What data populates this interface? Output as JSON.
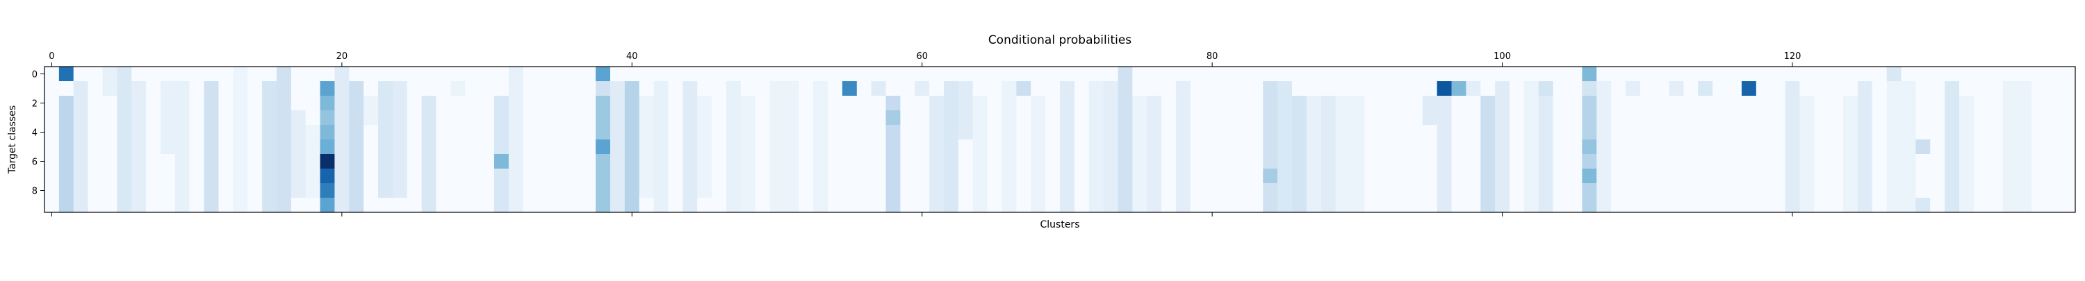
{
  "chart_data": {
    "type": "heatmap",
    "title": "Conditional probabilities",
    "xlabel": "Clusters",
    "ylabel": "Target classes",
    "colormap": "Blues",
    "x_range": [
      0,
      139
    ],
    "y_range": [
      0,
      9
    ],
    "xticks": [
      0,
      20,
      40,
      60,
      80,
      100,
      120
    ],
    "yticks": [
      0,
      2,
      4,
      6,
      8
    ],
    "xtick_position": "top and bottom (labels on top)",
    "value_scale": "relative intensity 0-1 (no colorbar shown)",
    "colors": {
      "low": "#f7fbff",
      "high": "#08306b",
      "axis": "#000000"
    },
    "sparse_cells": [
      {
        "col": 1,
        "rows": [
          0
        ],
        "v": 0.75
      },
      {
        "col": 1,
        "rows": [
          2,
          3,
          4,
          5,
          6,
          7,
          8,
          9
        ],
        "v": 0.28
      },
      {
        "col": 2,
        "rows": [
          1,
          2,
          3,
          4,
          5,
          6,
          7,
          8,
          9
        ],
        "v": 0.12
      },
      {
        "col": 4,
        "rows": [
          0,
          1
        ],
        "v": 0.08
      },
      {
        "col": 5,
        "rows": [
          0,
          1,
          2,
          3,
          4,
          5,
          6,
          7,
          8,
          9
        ],
        "v": 0.15
      },
      {
        "col": 6,
        "rows": [
          1,
          2,
          3,
          4,
          5,
          6,
          7,
          8,
          9
        ],
        "v": 0.1
      },
      {
        "col": 8,
        "rows": [
          1,
          2,
          3,
          4,
          5
        ],
        "v": 0.08
      },
      {
        "col": 9,
        "rows": [
          1,
          2,
          3,
          4,
          5,
          6,
          7,
          8,
          9
        ],
        "v": 0.08
      },
      {
        "col": 11,
        "rows": [
          1,
          2,
          3,
          4,
          5,
          6,
          7,
          8,
          9
        ],
        "v": 0.2
      },
      {
        "col": 13,
        "rows": [
          0,
          1,
          2,
          3,
          4,
          5,
          6,
          7,
          8,
          9
        ],
        "v": 0.05
      },
      {
        "col": 15,
        "rows": [
          1,
          2,
          3,
          4,
          5,
          6,
          7,
          8,
          9
        ],
        "v": 0.18
      },
      {
        "col": 16,
        "rows": [
          0
        ],
        "v": 0.2
      },
      {
        "col": 16,
        "rows": [
          1,
          2,
          3,
          4,
          5,
          6,
          7,
          8,
          9
        ],
        "v": 0.2
      },
      {
        "col": 17,
        "rows": [
          3,
          4,
          5,
          6,
          7,
          8
        ],
        "v": 0.1
      },
      {
        "col": 18,
        "rows": [
          4,
          5,
          6,
          7,
          8
        ],
        "v": 0.05
      },
      {
        "col": 19,
        "rows": [
          1
        ],
        "v": 0.55
      },
      {
        "col": 19,
        "rows": [
          2
        ],
        "v": 0.45
      },
      {
        "col": 19,
        "rows": [
          3
        ],
        "v": 0.4
      },
      {
        "col": 19,
        "rows": [
          4
        ],
        "v": 0.45
      },
      {
        "col": 19,
        "rows": [
          5
        ],
        "v": 0.5
      },
      {
        "col": 19,
        "rows": [
          6
        ],
        "v": 1.0
      },
      {
        "col": 19,
        "rows": [
          7
        ],
        "v": 0.8
      },
      {
        "col": 19,
        "rows": [
          8
        ],
        "v": 0.7
      },
      {
        "col": 19,
        "rows": [
          9
        ],
        "v": 0.55
      },
      {
        "col": 20,
        "rows": [
          0,
          1,
          2,
          3,
          4,
          5,
          6,
          7,
          8,
          9
        ],
        "v": 0.12
      },
      {
        "col": 21,
        "rows": [
          1,
          2,
          3,
          4,
          5,
          6,
          7,
          8,
          9
        ],
        "v": 0.22
      },
      {
        "col": 22,
        "rows": [
          2,
          3
        ],
        "v": 0.06
      },
      {
        "col": 23,
        "rows": [
          1,
          2,
          3,
          4,
          5,
          6,
          7,
          8
        ],
        "v": 0.15
      },
      {
        "col": 24,
        "rows": [
          1,
          2,
          3,
          4,
          5,
          6,
          7,
          8
        ],
        "v": 0.12
      },
      {
        "col": 26,
        "rows": [
          2,
          3,
          4,
          5,
          6,
          7,
          8,
          9
        ],
        "v": 0.15
      },
      {
        "col": 28,
        "rows": [
          1
        ],
        "v": 0.06
      },
      {
        "col": 31,
        "rows": [
          2,
          3,
          4,
          5,
          7,
          8,
          9
        ],
        "v": 0.16
      },
      {
        "col": 31,
        "rows": [
          6
        ],
        "v": 0.45
      },
      {
        "col": 32,
        "rows": [
          0,
          1,
          2,
          3,
          4,
          5,
          6,
          7,
          8,
          9
        ],
        "v": 0.08
      },
      {
        "col": 38,
        "rows": [
          0
        ],
        "v": 0.55
      },
      {
        "col": 38,
        "rows": [
          1
        ],
        "v": 0.2
      },
      {
        "col": 38,
        "rows": [
          2,
          3,
          4,
          6,
          7,
          8,
          9
        ],
        "v": 0.38
      },
      {
        "col": 38,
        "rows": [
          5
        ],
        "v": 0.55
      },
      {
        "col": 39,
        "rows": [
          1,
          2,
          3,
          4,
          5,
          6,
          7,
          8,
          9
        ],
        "v": 0.12
      },
      {
        "col": 40,
        "rows": [
          1,
          2,
          3,
          4,
          5,
          6,
          7,
          8,
          9
        ],
        "v": 0.3
      },
      {
        "col": 41,
        "rows": [
          2,
          3,
          4,
          5,
          6,
          7,
          8
        ],
        "v": 0.06
      },
      {
        "col": 42,
        "rows": [
          1,
          2,
          3,
          4,
          5,
          6,
          7,
          8,
          9
        ],
        "v": 0.08
      },
      {
        "col": 44,
        "rows": [
          1,
          2,
          3,
          4,
          5,
          6,
          7,
          8,
          9
        ],
        "v": 0.12
      },
      {
        "col": 45,
        "rows": [
          2,
          3,
          4,
          5,
          6,
          7,
          8
        ],
        "v": 0.06
      },
      {
        "col": 47,
        "rows": [
          1,
          2,
          3,
          4,
          5,
          6,
          7,
          8,
          9
        ],
        "v": 0.08
      },
      {
        "col": 48,
        "rows": [
          2,
          3,
          4,
          5,
          6,
          7,
          8,
          9
        ],
        "v": 0.06
      },
      {
        "col": 50,
        "rows": [
          1,
          2,
          3,
          4,
          5,
          6,
          7,
          8,
          9
        ],
        "v": 0.06
      },
      {
        "col": 51,
        "rows": [
          1,
          2,
          3,
          4,
          5,
          6,
          7,
          8,
          9
        ],
        "v": 0.06
      },
      {
        "col": 53,
        "rows": [
          1,
          2,
          3,
          4,
          5,
          6,
          7,
          8,
          9
        ],
        "v": 0.06
      },
      {
        "col": 55,
        "rows": [
          1
        ],
        "v": 0.65
      },
      {
        "col": 57,
        "rows": [
          1
        ],
        "v": 0.12
      },
      {
        "col": 58,
        "rows": [
          2,
          3,
          4,
          5,
          6,
          7,
          8,
          9
        ],
        "v": 0.25
      },
      {
        "col": 58,
        "rows": [
          3
        ],
        "v": 0.35
      },
      {
        "col": 60,
        "rows": [
          1
        ],
        "v": 0.1
      },
      {
        "col": 61,
        "rows": [
          2,
          3,
          4,
          5,
          6,
          7,
          8,
          9
        ],
        "v": 0.12
      },
      {
        "col": 62,
        "rows": [
          1,
          2,
          3,
          4,
          5,
          6,
          7,
          8,
          9
        ],
        "v": 0.15
      },
      {
        "col": 63,
        "rows": [
          1,
          2,
          3,
          4
        ],
        "v": 0.12
      },
      {
        "col": 64,
        "rows": [
          2,
          3,
          4,
          5,
          6,
          7,
          8,
          9
        ],
        "v": 0.06
      },
      {
        "col": 66,
        "rows": [
          1,
          2,
          3,
          4,
          5,
          6,
          7,
          8,
          9
        ],
        "v": 0.06
      },
      {
        "col": 67,
        "rows": [
          1
        ],
        "v": 0.22
      },
      {
        "col": 68,
        "rows": [
          2,
          3,
          4,
          5,
          6,
          7,
          8,
          9
        ],
        "v": 0.06
      },
      {
        "col": 70,
        "rows": [
          1,
          2,
          3,
          4,
          5,
          6,
          7,
          8,
          9
        ],
        "v": 0.12
      },
      {
        "col": 72,
        "rows": [
          1,
          2,
          3,
          4,
          5,
          6,
          7,
          8,
          9
        ],
        "v": 0.08
      },
      {
        "col": 73,
        "rows": [
          1,
          2,
          3,
          4,
          5,
          6,
          7,
          8,
          9
        ],
        "v": 0.1
      },
      {
        "col": 74,
        "rows": [
          0,
          1,
          2,
          3,
          4,
          5,
          6,
          7,
          8,
          9
        ],
        "v": 0.2
      },
      {
        "col": 75,
        "rows": [
          2,
          3,
          4,
          5,
          6,
          7,
          8,
          9
        ],
        "v": 0.06
      },
      {
        "col": 76,
        "rows": [
          2,
          3,
          4,
          5,
          6,
          7,
          8,
          9
        ],
        "v": 0.1
      },
      {
        "col": 78,
        "rows": [
          1,
          2,
          3,
          4,
          5,
          6,
          7,
          8,
          9
        ],
        "v": 0.1
      },
      {
        "col": 84,
        "rows": [
          1,
          2,
          3,
          4,
          5,
          6,
          7,
          8,
          9
        ],
        "v": 0.2
      },
      {
        "col": 84,
        "rows": [
          7
        ],
        "v": 0.35
      },
      {
        "col": 85,
        "rows": [
          1,
          2,
          3,
          4,
          5,
          6,
          7,
          8,
          9
        ],
        "v": 0.15
      },
      {
        "col": 86,
        "rows": [
          2,
          3,
          4,
          5,
          6,
          7,
          8,
          9
        ],
        "v": 0.18
      },
      {
        "col": 87,
        "rows": [
          2,
          3,
          4,
          5,
          6,
          7,
          8,
          9
        ],
        "v": 0.08
      },
      {
        "col": 88,
        "rows": [
          2,
          3,
          4,
          5,
          6,
          7,
          8,
          9
        ],
        "v": 0.12
      },
      {
        "col": 89,
        "rows": [
          2,
          3,
          4,
          5,
          6,
          7,
          8,
          9
        ],
        "v": 0.06
      },
      {
        "col": 90,
        "rows": [
          2,
          3,
          4,
          5,
          6,
          7,
          8,
          9
        ],
        "v": 0.06
      },
      {
        "col": 95,
        "rows": [
          2,
          3
        ],
        "v": 0.12
      },
      {
        "col": 96,
        "rows": [
          1
        ],
        "v": 0.85
      },
      {
        "col": 96,
        "rows": [
          2,
          3,
          4,
          5,
          6,
          7,
          8,
          9
        ],
        "v": 0.12
      },
      {
        "col": 97,
        "rows": [
          1
        ],
        "v": 0.45
      },
      {
        "col": 98,
        "rows": [
          1
        ],
        "v": 0.1
      },
      {
        "col": 99,
        "rows": [
          2,
          3,
          4,
          5,
          6,
          7,
          8,
          9
        ],
        "v": 0.22
      },
      {
        "col": 100,
        "rows": [
          1,
          2,
          3,
          4,
          5,
          6,
          7,
          8,
          9
        ],
        "v": 0.12
      },
      {
        "col": 102,
        "rows": [
          1,
          2,
          3,
          4,
          5,
          6,
          7,
          8,
          9
        ],
        "v": 0.06
      },
      {
        "col": 103,
        "rows": [
          1
        ],
        "v": 0.18
      },
      {
        "col": 103,
        "rows": [
          2,
          3,
          4,
          5,
          6,
          7,
          8,
          9
        ],
        "v": 0.12
      },
      {
        "col": 106,
        "rows": [
          0
        ],
        "v": 0.45
      },
      {
        "col": 106,
        "rows": [
          1
        ],
        "v": 0.18
      },
      {
        "col": 106,
        "rows": [
          2,
          3,
          4,
          5,
          6,
          7,
          8,
          9
        ],
        "v": 0.3
      },
      {
        "col": 106,
        "rows": [
          5
        ],
        "v": 0.4
      },
      {
        "col": 106,
        "rows": [
          7
        ],
        "v": 0.45
      },
      {
        "col": 107,
        "rows": [
          1,
          2,
          3,
          4,
          5,
          6,
          7,
          8,
          9
        ],
        "v": 0.08
      },
      {
        "col": 109,
        "rows": [
          1
        ],
        "v": 0.1
      },
      {
        "col": 112,
        "rows": [
          1
        ],
        "v": 0.1
      },
      {
        "col": 114,
        "rows": [
          1
        ],
        "v": 0.15
      },
      {
        "col": 117,
        "rows": [
          1
        ],
        "v": 0.8
      },
      {
        "col": 120,
        "rows": [
          1,
          2,
          3,
          4,
          5,
          6,
          7,
          8,
          9
        ],
        "v": 0.12
      },
      {
        "col": 121,
        "rows": [
          2,
          3,
          4,
          5,
          6,
          7,
          8,
          9
        ],
        "v": 0.06
      },
      {
        "col": 124,
        "rows": [
          2,
          3,
          4,
          5,
          6,
          7,
          8,
          9
        ],
        "v": 0.06
      },
      {
        "col": 125,
        "rows": [
          1,
          2,
          3,
          4,
          5,
          6,
          7,
          8,
          9
        ],
        "v": 0.12
      },
      {
        "col": 127,
        "rows": [
          0
        ],
        "v": 0.15
      },
      {
        "col": 127,
        "rows": [
          1,
          2,
          3,
          4,
          5,
          6,
          7,
          8,
          9
        ],
        "v": 0.06
      },
      {
        "col": 128,
        "rows": [
          1,
          2,
          3,
          4,
          5,
          6,
          7,
          8,
          9
        ],
        "v": 0.06
      },
      {
        "col": 129,
        "rows": [
          5
        ],
        "v": 0.22
      },
      {
        "col": 129,
        "rows": [
          9
        ],
        "v": 0.15
      },
      {
        "col": 131,
        "rows": [
          1,
          2,
          3,
          4,
          5,
          6,
          7,
          8,
          9
        ],
        "v": 0.15
      },
      {
        "col": 132,
        "rows": [
          2,
          3,
          4,
          5,
          6,
          7,
          8,
          9
        ],
        "v": 0.06
      },
      {
        "col": 135,
        "rows": [
          1,
          2,
          3,
          4,
          5,
          6,
          7,
          8,
          9
        ],
        "v": 0.06
      },
      {
        "col": 136,
        "rows": [
          1,
          2,
          3,
          4,
          5,
          6,
          7,
          8,
          9
        ],
        "v": 0.06
      }
    ]
  }
}
